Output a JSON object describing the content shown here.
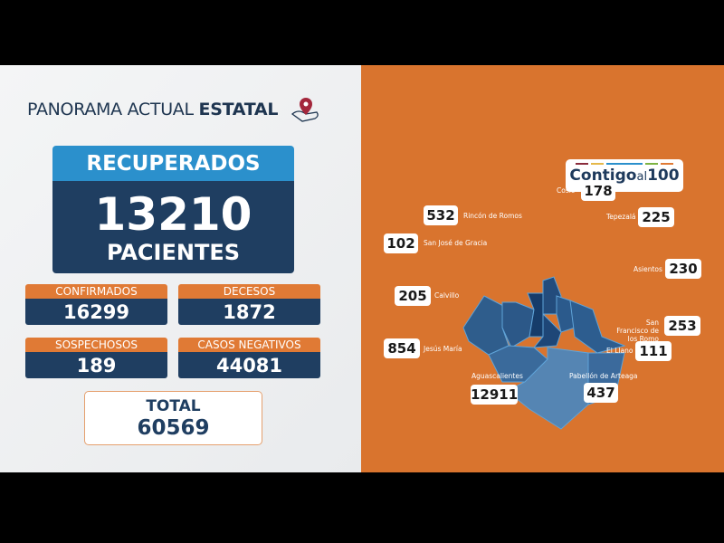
{
  "header": {
    "title_regular": "PANORAMA ACTUAL",
    "title_bold": "ESTATAL"
  },
  "recuperados": {
    "label": "RECUPERADOS",
    "value": "13210",
    "unit": "PACIENTES"
  },
  "stats": [
    {
      "label": "CONFIRMADOS",
      "value": "16299"
    },
    {
      "label": "DECESOS",
      "value": "1872"
    },
    {
      "label": "SOSPECHOSOS",
      "value": "189"
    },
    {
      "label": "CASOS NEGATIVOS",
      "value": "44081"
    }
  ],
  "total": {
    "label": "TOTAL",
    "value": "60569"
  },
  "logo": {
    "text_bold1": "Contigo",
    "text_light": "al",
    "text_bold2": "100",
    "bar_colors": [
      "#8b2c3c",
      "#e5b84a",
      "#2b90cc",
      "#2b90cc",
      "#7cb342",
      "#e07a35"
    ]
  },
  "colors": {
    "orange": "#d9742e",
    "navy": "#1f3e61",
    "blue": "#2b90cc"
  },
  "municipios": [
    {
      "name": "Cosío",
      "value": "178"
    },
    {
      "name": "Rincón de Romos",
      "value": "532"
    },
    {
      "name": "Tepezalá",
      "value": "225"
    },
    {
      "name": "San José de Gracia",
      "value": "102"
    },
    {
      "name": "Asientos",
      "value": "230"
    },
    {
      "name": "Calvillo",
      "value": "205"
    },
    {
      "name": "San Francisco de los Romo",
      "value": "253"
    },
    {
      "name": "Jesús María",
      "value": "854"
    },
    {
      "name": "El Llano",
      "value": "111"
    },
    {
      "name": "Aguascalientes",
      "value": "12911"
    },
    {
      "name": "Pabellón de Arteaga",
      "value": "437"
    }
  ]
}
